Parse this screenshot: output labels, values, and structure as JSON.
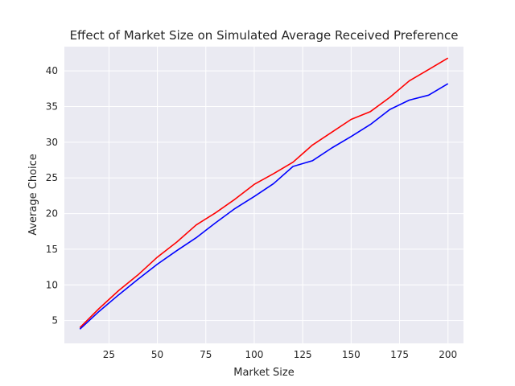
{
  "chart_data": {
    "type": "line",
    "title": "Effect of Market Size on Simulated Average Received Preference",
    "xlabel": "Market Size",
    "ylabel": "Average Choice",
    "xlim": [
      2,
      208
    ],
    "ylim": [
      1.8,
      43.4
    ],
    "xticks": [
      25,
      50,
      75,
      100,
      125,
      150,
      175,
      200
    ],
    "yticks": [
      5,
      10,
      15,
      20,
      25,
      30,
      35,
      40
    ],
    "grid": true,
    "x": [
      10,
      20,
      30,
      40,
      50,
      60,
      70,
      80,
      90,
      100,
      110,
      120,
      130,
      140,
      150,
      160,
      170,
      180,
      190,
      200
    ],
    "series": [
      {
        "color": "#ff0000",
        "values": [
          4.0,
          6.7,
          9.2,
          11.4,
          13.9,
          16.0,
          18.4,
          20.1,
          22.0,
          24.1,
          25.6,
          27.2,
          29.6,
          31.4,
          33.2,
          34.3,
          36.3,
          38.6,
          40.2,
          41.8
        ]
      },
      {
        "color": "#0000ff",
        "values": [
          3.8,
          6.3,
          8.6,
          10.8,
          12.9,
          14.8,
          16.6,
          18.7,
          20.7,
          22.4,
          24.2,
          26.6,
          27.4,
          29.2,
          30.8,
          32.5,
          34.6,
          35.9,
          36.6,
          38.2
        ]
      }
    ]
  }
}
